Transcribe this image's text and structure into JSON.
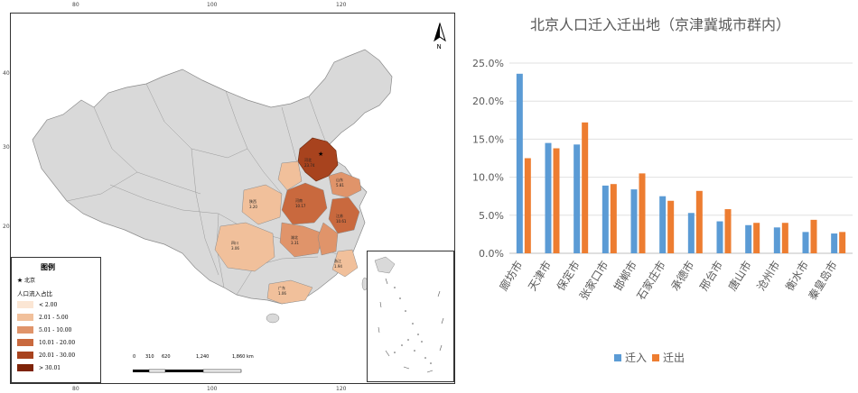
{
  "map": {
    "top_ticks": [
      "80",
      "100",
      "120"
    ],
    "left_ticks": [
      "40",
      "30",
      "20"
    ],
    "legend": {
      "title": "图例",
      "capital": "北京",
      "subtitle": "人口流入占比",
      "classes": [
        {
          "label": "< 2.00",
          "color": "#fbe6d4"
        },
        {
          "label": "2.01 - 5.00",
          "color": "#f1c09b"
        },
        {
          "label": "5.01 - 10.00",
          "color": "#e0946a"
        },
        {
          "label": "10.01 - 20.00",
          "color": "#c9693e"
        },
        {
          "label": "20.01 - 30.00",
          "color": "#a8431e"
        },
        {
          "label": "> 30.01",
          "color": "#7e2308"
        }
      ]
    },
    "north_label": "N",
    "scale_labels": [
      "0",
      "310",
      "620",
      "1,240",
      "1,860"
    ],
    "scale_unit": "km",
    "colors": {
      "base": "#d9d9d9",
      "border": "#8a8a8a"
    },
    "province_labels": [
      {
        "name": "河北",
        "value": "23.74"
      },
      {
        "name": "山东",
        "value": "5.81"
      },
      {
        "name": "河南",
        "value": "10.17"
      },
      {
        "name": "江苏",
        "value": "10.61"
      },
      {
        "name": "湖北",
        "value": "3.31"
      },
      {
        "name": "四川",
        "value": "3.06"
      },
      {
        "name": "陕西",
        "value": "3.20"
      },
      {
        "name": "浙江",
        "value": "1.94"
      },
      {
        "name": "广东",
        "value": "1.06"
      }
    ]
  },
  "chart_data": {
    "type": "bar",
    "title": "北京人口迁入迁出地（京津冀城市群内）",
    "categories": [
      "廊坊市",
      "天津市",
      "保定市",
      "张家口市",
      "邯郸市",
      "石家庄市",
      "承德市",
      "邢台市",
      "唐山市",
      "沧州市",
      "衡水市",
      "秦皇岛市"
    ],
    "series": [
      {
        "name": "迁入",
        "color": "#5b9bd5",
        "values": [
          23.6,
          14.5,
          14.3,
          8.9,
          8.4,
          7.5,
          5.3,
          4.2,
          3.7,
          3.4,
          2.8,
          2.6
        ]
      },
      {
        "name": "迁出",
        "color": "#ed7d31",
        "values": [
          12.5,
          13.8,
          17.2,
          9.1,
          10.5,
          6.9,
          8.2,
          5.8,
          4.0,
          4.0,
          4.4,
          2.8
        ]
      }
    ],
    "y_ticks": [
      "25.0%",
      "20.0%",
      "15.0%",
      "10.0%",
      "5.0%",
      "0.0%"
    ],
    "ylim": [
      0,
      25
    ],
    "legend_position": "bottom",
    "grid": true
  }
}
